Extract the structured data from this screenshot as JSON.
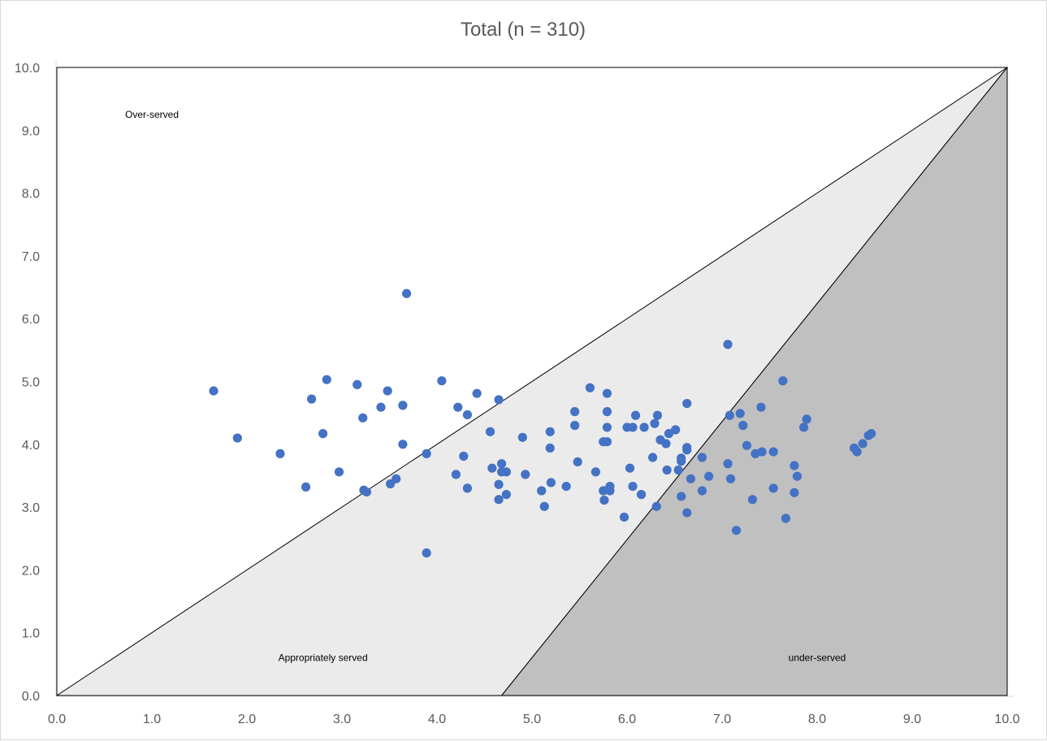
{
  "chart_data": {
    "type": "scatter",
    "title": "Total (n = 310)",
    "xlabel": "",
    "ylabel": "",
    "xlim": [
      0,
      10
    ],
    "ylim": [
      0,
      10
    ],
    "xticks": [
      "0.0",
      "1.0",
      "2.0",
      "3.0",
      "4.0",
      "5.0",
      "6.0",
      "7.0",
      "8.0",
      "9.0",
      "10.0"
    ],
    "yticks": [
      "0.0",
      "1.0",
      "2.0",
      "3.0",
      "4.0",
      "5.0",
      "6.0",
      "7.0",
      "8.0",
      "9.0",
      "10.0"
    ],
    "grid": false,
    "legend": "none",
    "colors": {
      "point": "#4472C4",
      "appropriately_served": "#EBEBEB",
      "under_served": "#C0C0C0",
      "boundary": "#000000"
    },
    "regions": [
      {
        "label": "Over-served",
        "label_at": [
          1.0,
          9.2
        ],
        "polygon": []
      },
      {
        "label": "Appropriately served",
        "label_at": [
          2.8,
          0.55
        ],
        "polygon": [
          [
            0,
            0
          ],
          [
            4.68,
            0
          ],
          [
            10,
            10
          ]
        ]
      },
      {
        "label": "under-served",
        "label_at": [
          8.0,
          0.55
        ],
        "polygon": [
          [
            4.68,
            0
          ],
          [
            10,
            0
          ],
          [
            10,
            10
          ]
        ]
      }
    ],
    "points": [
      [
        1.65,
        4.85
      ],
      [
        1.9,
        4.1
      ],
      [
        2.35,
        3.85
      ],
      [
        2.62,
        3.32
      ],
      [
        2.68,
        4.72
      ],
      [
        2.8,
        4.17
      ],
      [
        2.84,
        5.03
      ],
      [
        2.97,
        3.56
      ],
      [
        3.16,
        4.95
      ],
      [
        3.22,
        4.42
      ],
      [
        3.23,
        3.27
      ],
      [
        3.26,
        3.24
      ],
      [
        3.41,
        4.59
      ],
      [
        3.48,
        4.85
      ],
      [
        3.51,
        3.37
      ],
      [
        3.57,
        3.45
      ],
      [
        3.64,
        4.62
      ],
      [
        3.64,
        4.0
      ],
      [
        3.68,
        6.4
      ],
      [
        3.89,
        3.85
      ],
      [
        3.89,
        2.27
      ],
      [
        4.05,
        5.01
      ],
      [
        4.2,
        3.52
      ],
      [
        4.22,
        4.59
      ],
      [
        4.28,
        3.81
      ],
      [
        4.32,
        4.47
      ],
      [
        4.32,
        3.3
      ],
      [
        4.42,
        4.81
      ],
      [
        4.56,
        4.2
      ],
      [
        4.58,
        3.62
      ],
      [
        4.65,
        4.71
      ],
      [
        4.65,
        3.36
      ],
      [
        4.65,
        3.12
      ],
      [
        4.68,
        3.69
      ],
      [
        4.68,
        3.56
      ],
      [
        4.73,
        3.56
      ],
      [
        4.73,
        3.2
      ],
      [
        4.9,
        4.11
      ],
      [
        4.93,
        3.52
      ],
      [
        5.1,
        3.26
      ],
      [
        5.13,
        3.01
      ],
      [
        5.19,
        4.2
      ],
      [
        5.19,
        3.94
      ],
      [
        5.2,
        3.39
      ],
      [
        5.36,
        3.33
      ],
      [
        5.45,
        4.52
      ],
      [
        5.45,
        4.3
      ],
      [
        5.48,
        3.72
      ],
      [
        5.61,
        4.9
      ],
      [
        5.67,
        3.56
      ],
      [
        5.75,
        4.04
      ],
      [
        5.75,
        3.26
      ],
      [
        5.76,
        3.11
      ],
      [
        5.79,
        4.81
      ],
      [
        5.79,
        4.52
      ],
      [
        5.79,
        4.27
      ],
      [
        5.79,
        4.04
      ],
      [
        5.82,
        3.33
      ],
      [
        5.82,
        3.26
      ],
      [
        5.97,
        2.84
      ],
      [
        6.0,
        4.27
      ],
      [
        6.03,
        3.62
      ],
      [
        6.06,
        4.27
      ],
      [
        6.06,
        3.33
      ],
      [
        6.09,
        4.46
      ],
      [
        6.15,
        3.2
      ],
      [
        6.18,
        4.27
      ],
      [
        6.27,
        3.79
      ],
      [
        6.29,
        4.33
      ],
      [
        6.31,
        3.01
      ],
      [
        6.32,
        4.46
      ],
      [
        6.35,
        4.07
      ],
      [
        6.41,
        4.01
      ],
      [
        6.42,
        3.59
      ],
      [
        6.44,
        4.17
      ],
      [
        6.51,
        4.23
      ],
      [
        6.54,
        3.59
      ],
      [
        6.57,
        3.78
      ],
      [
        6.57,
        3.73
      ],
      [
        6.57,
        3.17
      ],
      [
        6.63,
        4.65
      ],
      [
        6.63,
        3.95
      ],
      [
        6.63,
        3.91
      ],
      [
        6.63,
        2.91
      ],
      [
        6.67,
        3.45
      ],
      [
        6.79,
        3.79
      ],
      [
        6.79,
        3.26
      ],
      [
        6.86,
        3.49
      ],
      [
        7.06,
        5.59
      ],
      [
        7.06,
        3.69
      ],
      [
        7.08,
        4.46
      ],
      [
        7.09,
        3.45
      ],
      [
        7.15,
        2.63
      ],
      [
        7.19,
        4.49
      ],
      [
        7.22,
        4.3
      ],
      [
        7.26,
        3.98
      ],
      [
        7.32,
        3.12
      ],
      [
        7.35,
        3.85
      ],
      [
        7.41,
        4.59
      ],
      [
        7.42,
        3.88
      ],
      [
        7.54,
        3.88
      ],
      [
        7.54,
        3.3
      ],
      [
        7.64,
        5.01
      ],
      [
        7.67,
        2.82
      ],
      [
        7.76,
        3.66
      ],
      [
        7.76,
        3.23
      ],
      [
        7.79,
        3.49
      ],
      [
        7.86,
        4.27
      ],
      [
        7.89,
        4.4
      ],
      [
        8.39,
        3.94
      ],
      [
        8.42,
        3.88
      ],
      [
        8.48,
        4.01
      ],
      [
        8.54,
        4.14
      ],
      [
        8.57,
        4.17
      ]
    ]
  }
}
